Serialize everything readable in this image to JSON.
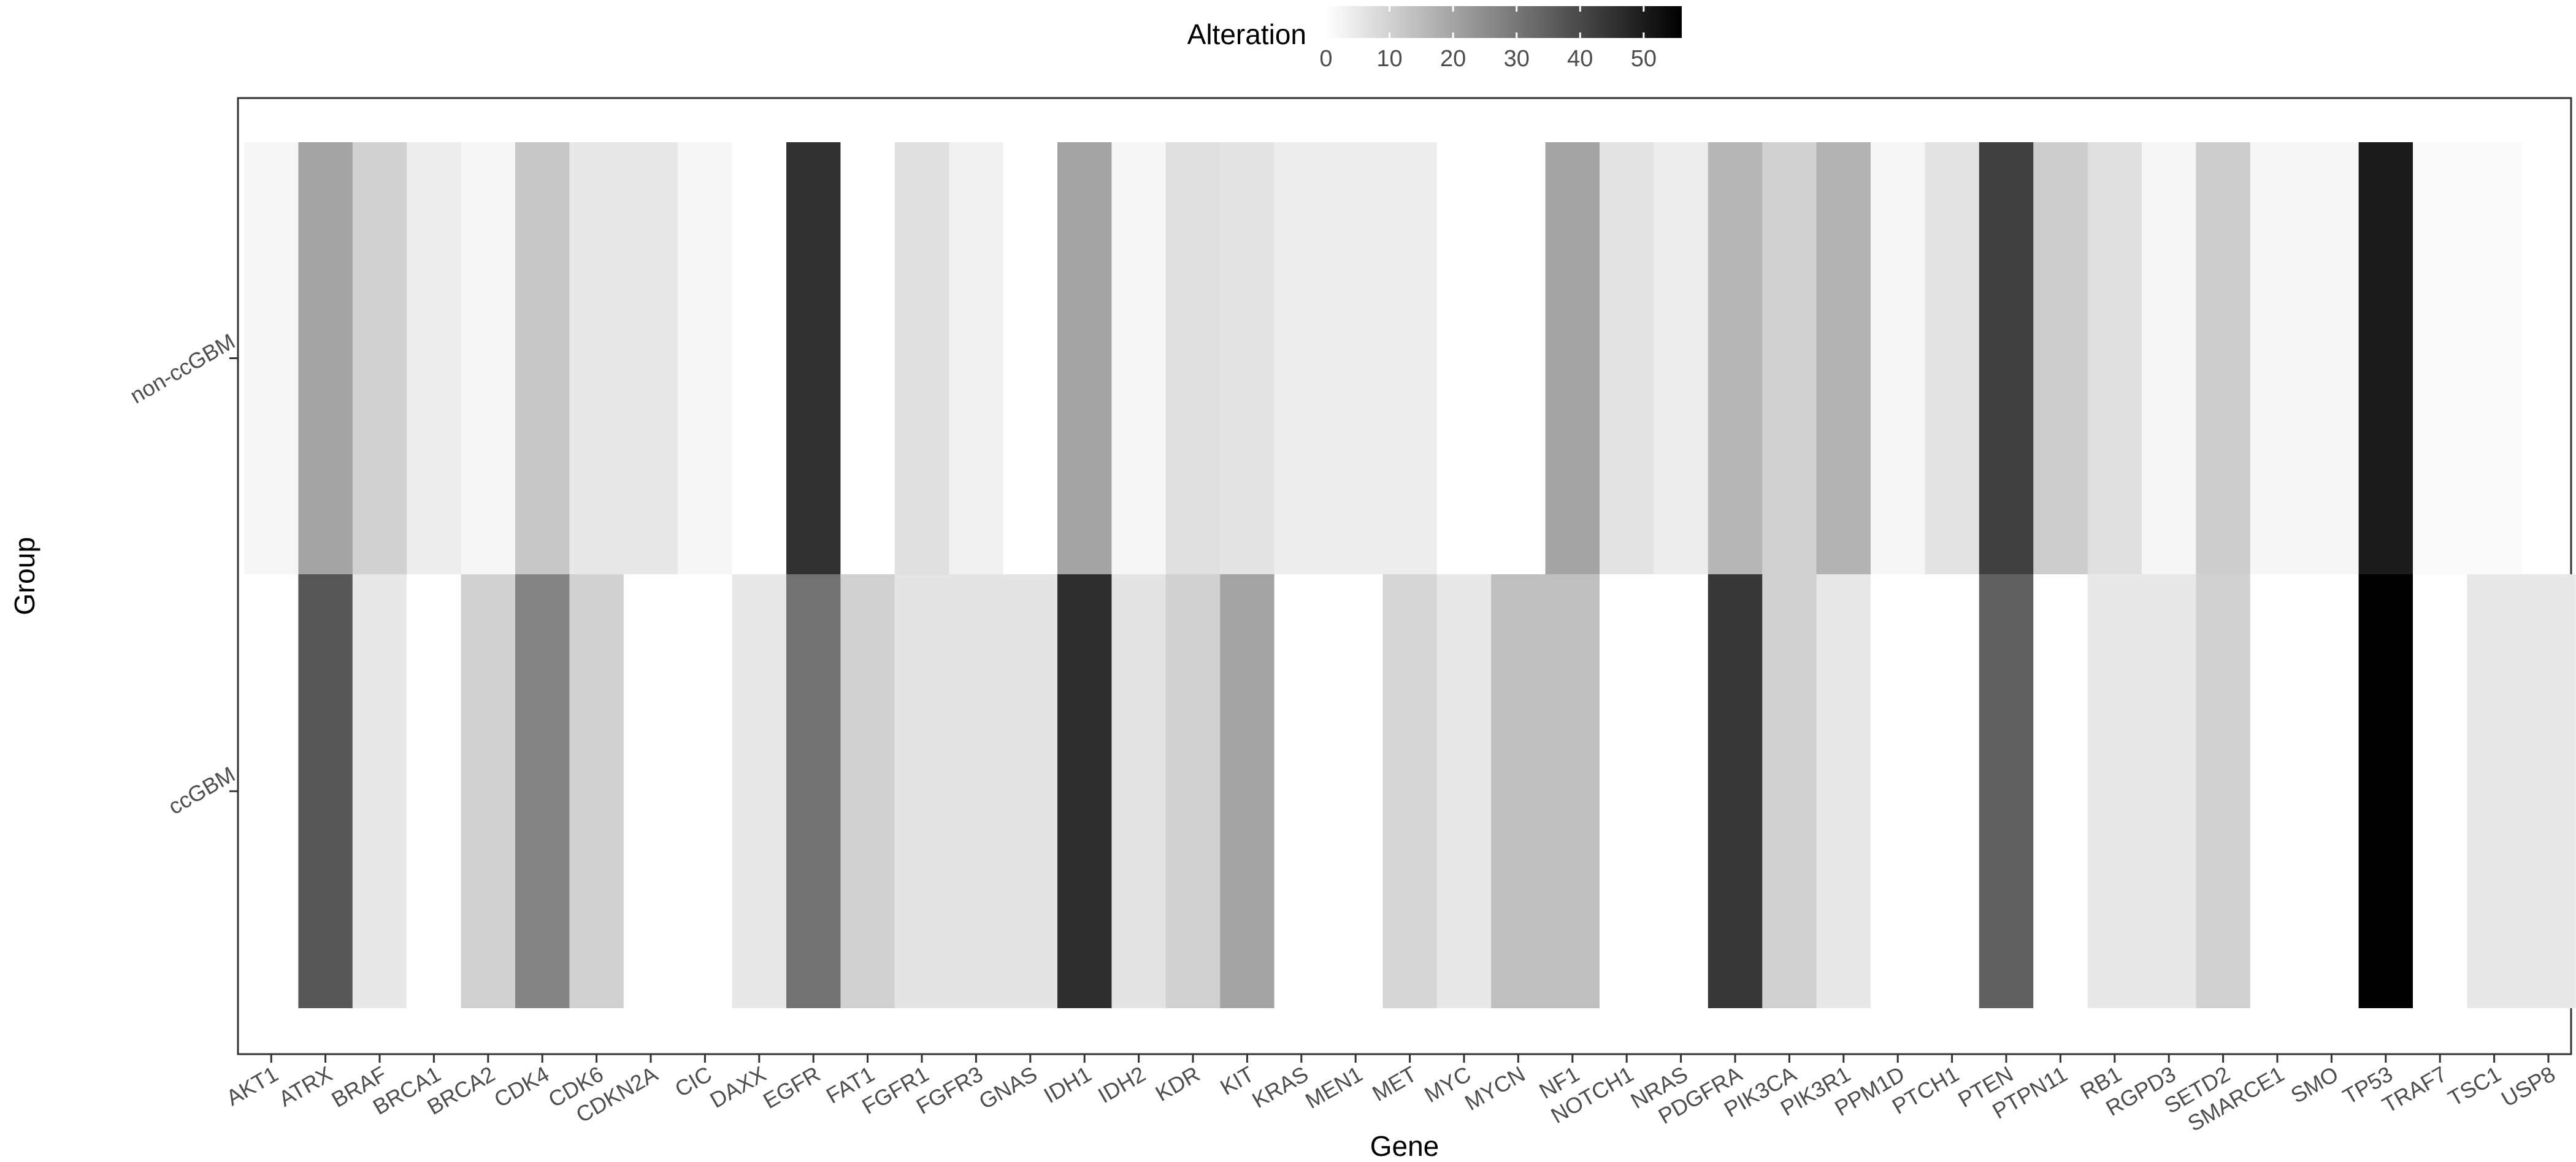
{
  "chart_data": {
    "type": "heatmap",
    "title": "",
    "xlabel": "Gene",
    "ylabel": "Group",
    "x_categories": [
      "AKT1",
      "ATRX",
      "BRAF",
      "BRCA1",
      "BRCA2",
      "CDK4",
      "CDK6",
      "CDKN2A",
      "CIC",
      "DAXX",
      "EGFR",
      "FAT1",
      "FGFR1",
      "FGFR3",
      "GNAS",
      "IDH1",
      "IDH2",
      "KDR",
      "KIT",
      "KRAS",
      "MEN1",
      "MET",
      "MYC",
      "MYCN",
      "NF1",
      "NOTCH1",
      "NRAS",
      "PDGFRA",
      "PIK3CA",
      "PIK3R1",
      "PPM1D",
      "PTCH1",
      "PTEN",
      "PTPN11",
      "RB1",
      "RGPD3",
      "SETD2",
      "SMARCE1",
      "SMO",
      "TP53",
      "TRAF7",
      "TSC1",
      "USP8"
    ],
    "y_categories": [
      "non-ccGBM",
      "ccGBM"
    ],
    "values": [
      [
        2,
        20,
        10,
        4,
        2,
        12,
        5,
        5,
        2,
        0,
        45,
        0,
        7,
        3,
        0,
        20,
        2,
        7,
        6,
        4,
        4,
        4,
        0,
        0,
        20,
        6,
        4,
        16,
        10,
        17,
        2,
        6,
        42,
        11,
        7,
        2,
        11,
        2,
        2,
        50,
        1,
        1,
        null
      ],
      [
        null,
        37,
        5,
        0,
        10,
        27,
        10,
        0,
        0,
        5,
        31,
        10,
        6,
        6,
        6,
        46,
        6,
        10,
        20,
        0,
        0,
        9,
        5,
        14,
        14,
        0,
        0,
        44,
        10,
        5,
        0,
        0,
        35,
        0,
        5,
        5,
        10,
        0,
        0,
        56,
        0,
        5,
        5
      ]
    ],
    "legend": {
      "title": "Alteration",
      "ticks": [
        "0",
        "10",
        "20",
        "30",
        "40",
        "50"
      ],
      "range": [
        0,
        56
      ],
      "position": "top"
    },
    "grid": false
  }
}
